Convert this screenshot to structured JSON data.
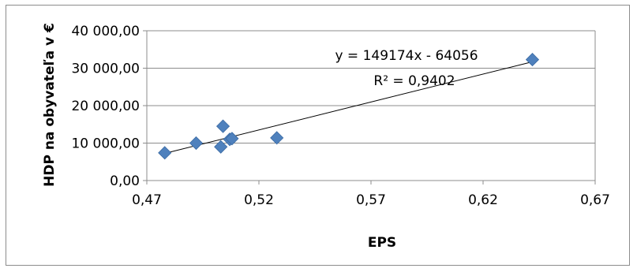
{
  "chart_data": {
    "type": "scatter",
    "title": "",
    "xlabel": "EPS",
    "ylabel": "HDP na obyvateľa v €",
    "xlim": [
      0.47,
      0.67
    ],
    "ylim": [
      0,
      40000
    ],
    "xticks": [
      0.47,
      0.52,
      0.57,
      0.62,
      0.67
    ],
    "yticks": [
      0,
      10000,
      20000,
      30000,
      40000
    ],
    "xtick_labels": [
      "0,47",
      "0,52",
      "0,57",
      "0,62",
      "0,67"
    ],
    "ytick_labels": [
      "0,00",
      "10 000,00",
      "20 000,00",
      "30 000,00",
      "40 000,00"
    ],
    "grid": "horizontal",
    "legend": "none",
    "series": [
      {
        "marker": "diamond",
        "color": "#4F81BD",
        "points": [
          {
            "x": 0.478,
            "y": 7400
          },
          {
            "x": 0.492,
            "y": 10000
          },
          {
            "x": 0.503,
            "y": 9000
          },
          {
            "x": 0.504,
            "y": 14500
          },
          {
            "x": 0.507,
            "y": 11000
          },
          {
            "x": 0.508,
            "y": 11200
          },
          {
            "x": 0.528,
            "y": 11400
          },
          {
            "x": 0.642,
            "y": 32300
          }
        ]
      }
    ],
    "trendline": {
      "type": "linear",
      "slope": 149174,
      "intercept": -64056,
      "x_range": [
        0.477,
        0.642
      ],
      "color": "#000000"
    },
    "annotations": {
      "equation": "y = 149174x - 64056",
      "r_squared": "R² = 0,9402"
    }
  }
}
